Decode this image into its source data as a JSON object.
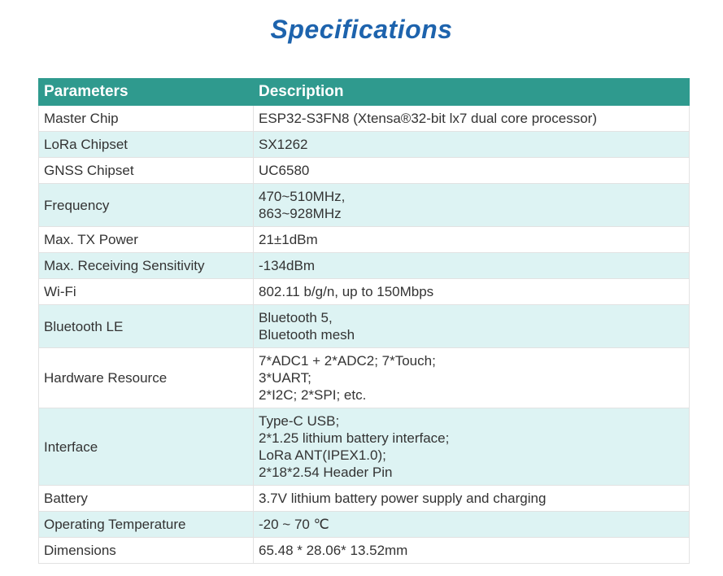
{
  "title": "Specifications",
  "table": {
    "header": [
      "Parameters",
      "Description"
    ],
    "rows": [
      [
        "Master Chip",
        [
          "ESP32-S3FN8 (Xtensa®32-bit lx7 dual core processor)"
        ]
      ],
      [
        "LoRa Chipset",
        [
          "SX1262"
        ]
      ],
      [
        "GNSS Chipset",
        [
          "UC6580"
        ]
      ],
      [
        "Frequency",
        [
          "470~510MHz,",
          "863~928MHz"
        ]
      ],
      [
        "Max. TX Power",
        [
          "21±1dBm"
        ]
      ],
      [
        "Max. Receiving Sensitivity",
        [
          "-134dBm"
        ]
      ],
      [
        "Wi-Fi",
        [
          "802.11 b/g/n, up to 150Mbps"
        ]
      ],
      [
        "Bluetooth LE",
        [
          "Bluetooth 5,",
          "Bluetooth mesh"
        ]
      ],
      [
        "Hardware Resource",
        [
          "7*ADC1 + 2*ADC2; 7*Touch;",
          "3*UART;",
          "2*I2C; 2*SPI; etc."
        ]
      ],
      [
        "Interface",
        [
          "Type-C USB;",
          "2*1.25 lithium battery interface;",
          "LoRa ANT(IPEX1.0);",
          "2*18*2.54 Header Pin"
        ]
      ],
      [
        "Battery",
        [
          "3.7V lithium battery power supply and charging"
        ]
      ],
      [
        "Operating Temperature",
        [
          "-20 ~ 70 ℃"
        ]
      ],
      [
        "Dimensions",
        [
          "65.48 * 28.06* 13.52mm"
        ]
      ]
    ]
  }
}
